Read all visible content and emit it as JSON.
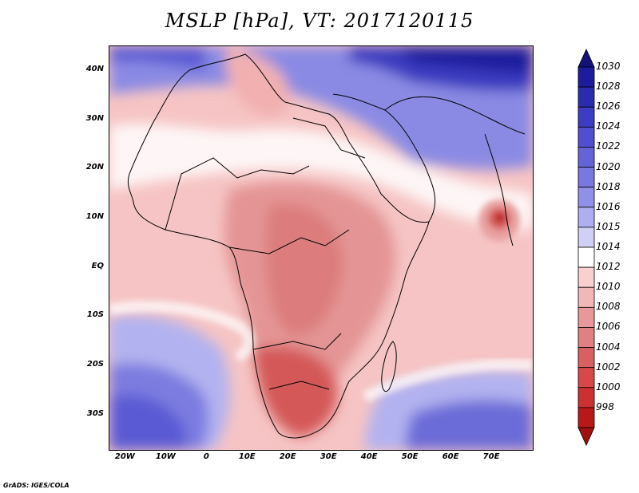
{
  "title": "MSLP [hPa], VT: 2017120115",
  "footer": "GrADS: IGES/COLA",
  "map": {
    "lon_range": [
      -24,
      80
    ],
    "lat_range": [
      -37,
      45
    ],
    "lat_ticks": [
      {
        "value": 40,
        "label": "40N"
      },
      {
        "value": 30,
        "label": "30N"
      },
      {
        "value": 20,
        "label": "20N"
      },
      {
        "value": 10,
        "label": "10N"
      },
      {
        "value": 0,
        "label": "EQ"
      },
      {
        "value": -10,
        "label": "10S"
      },
      {
        "value": -20,
        "label": "20S"
      },
      {
        "value": -30,
        "label": "30S"
      }
    ],
    "lon_ticks": [
      {
        "value": -20,
        "label": "20W"
      },
      {
        "value": -10,
        "label": "10W"
      },
      {
        "value": 0,
        "label": "0"
      },
      {
        "value": 10,
        "label": "10E"
      },
      {
        "value": 20,
        "label": "20E"
      },
      {
        "value": 30,
        "label": "30E"
      },
      {
        "value": 40,
        "label": "40E"
      },
      {
        "value": 50,
        "label": "50E"
      },
      {
        "value": 60,
        "label": "60E"
      },
      {
        "value": 70,
        "label": "70E"
      }
    ]
  },
  "colorbar": {
    "levels": [
      "1030",
      "1028",
      "1026",
      "1024",
      "1022",
      "1020",
      "1018",
      "1016",
      "1015",
      "1014",
      "1012",
      "1010",
      "1008",
      "1006",
      "1004",
      "1002",
      "1000",
      "998"
    ],
    "colors": [
      "#1c1c9c",
      "#2b2bb0",
      "#3c3cc4",
      "#4f4fd0",
      "#6464d8",
      "#7878e0",
      "#9090e8",
      "#aeaef0",
      "#d0d0f6",
      "#ffffff",
      "#f8d0d0",
      "#f2b8b8",
      "#e89898",
      "#e08080",
      "#d86060",
      "#d84848",
      "#cc3030",
      "#b81818"
    ],
    "top_color": "#12127a",
    "bottom_color": "#a01010"
  }
}
